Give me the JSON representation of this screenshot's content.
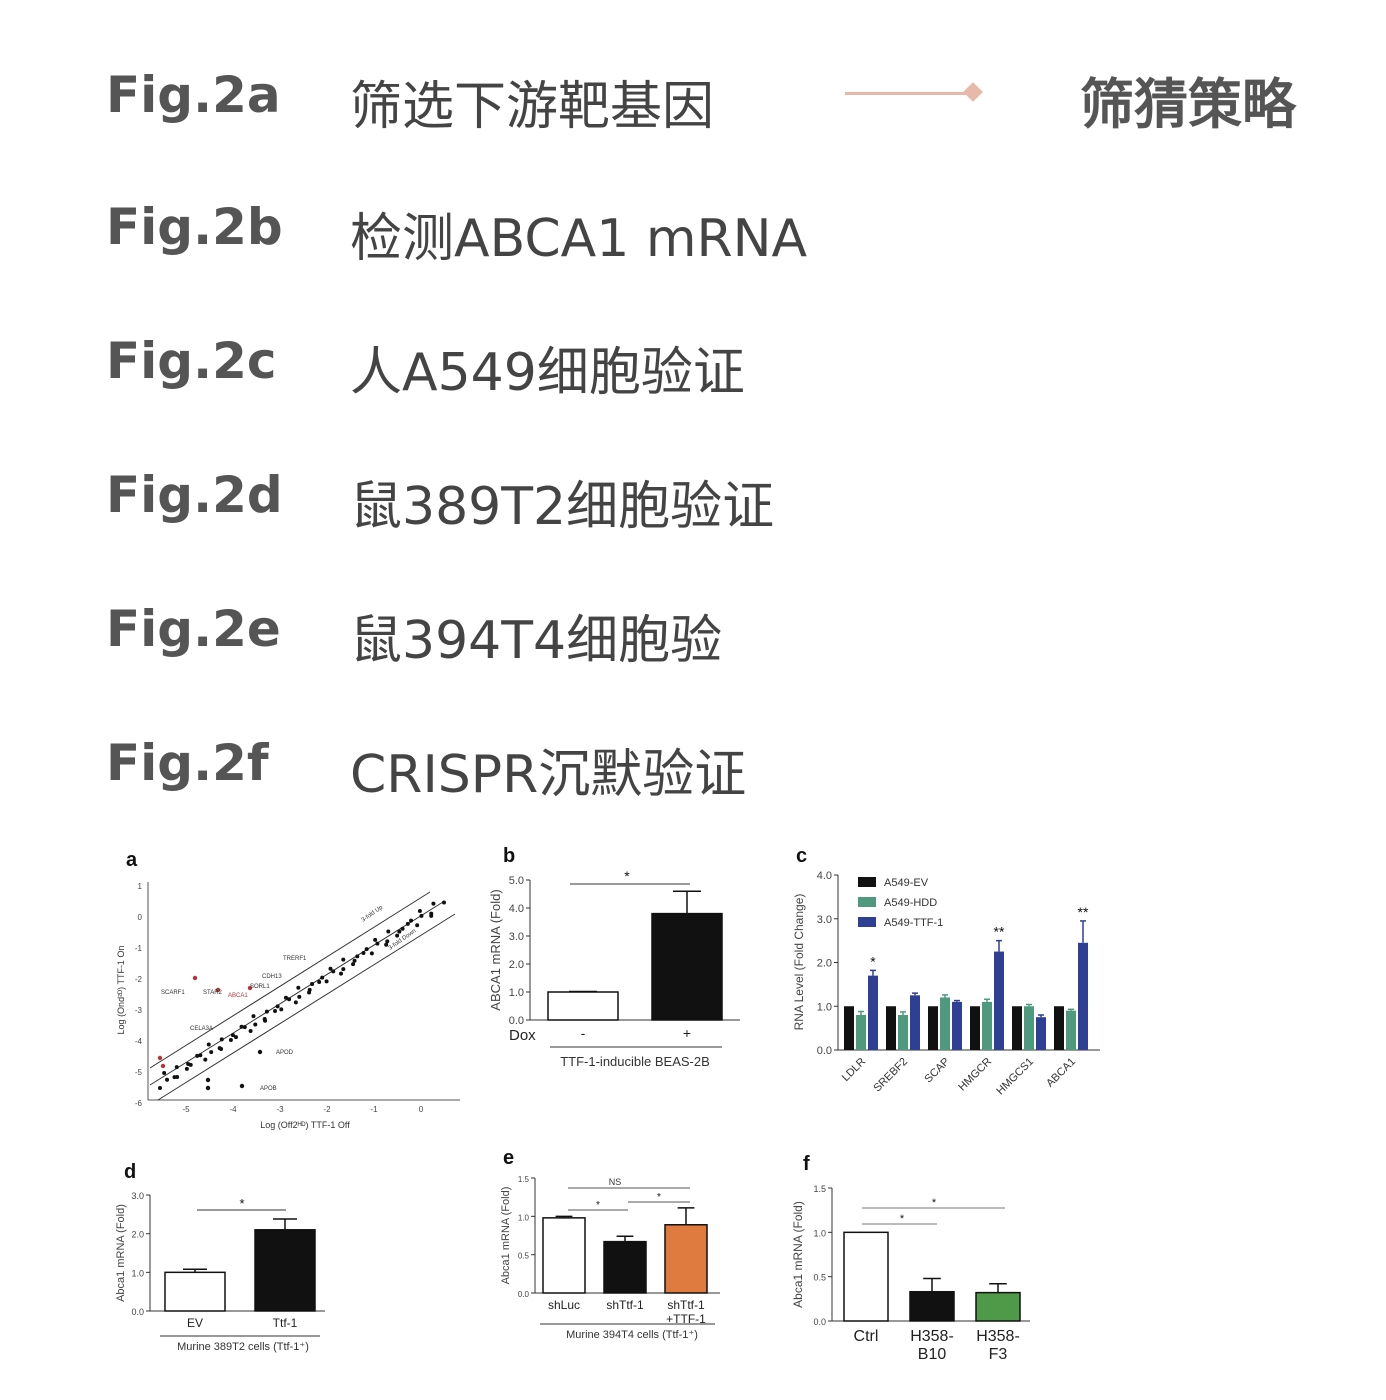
{
  "rows": [
    {
      "fig": "Fig.2a",
      "desc": "筛选下游靶基因"
    },
    {
      "fig": "Fig.2b",
      "desc": "检测ABCA1 mRNA"
    },
    {
      "fig": "Fig.2c",
      "desc": "人A549细胞验证"
    },
    {
      "fig": "Fig.2d",
      "desc": "鼠389T2细胞验证"
    },
    {
      "fig": "Fig.2e",
      "desc": "鼠394T4细胞验"
    },
    {
      "fig": "Fig.2f",
      "desc": "CRISPR沉默验证"
    }
  ],
  "strategy_label": "筛猜策略",
  "accent_color": "#e8b9a8",
  "chart_data": [
    {
      "panel": "a",
      "type": "scatter",
      "xlabel": "Log (Off2ᴴᴰ) TTF-1 Off",
      "ylabel": "Log (Ond²ᴰ) TTF-1 On",
      "xticks": [
        "-5",
        "-4",
        "-3",
        "-2",
        "-1",
        "0"
      ],
      "yticks": [
        "1",
        "0",
        "-1",
        "-2",
        "-3",
        "-4",
        "-5",
        "-6"
      ],
      "annotations": [
        "3-fold Up",
        "3-fold Down",
        "TRERF1",
        "CDH13",
        "SORL1",
        "ABCA1",
        "STAR2",
        "SCARF1",
        "CELA3A",
        "APOD",
        "APOB"
      ]
    },
    {
      "panel": "b",
      "type": "bar",
      "categories": [
        "-",
        "+"
      ],
      "values": [
        1.0,
        3.8
      ],
      "errors": [
        0.02,
        0.8
      ],
      "ylabel": "ABCA1 mRNA (Fold)",
      "ylim": [
        0,
        5
      ],
      "yticks": [
        "5.0",
        "4.0",
        "3.0",
        "2.0",
        "1.0",
        "0.0"
      ],
      "row_label": "Dox",
      "xlabel": "TTF-1-inducible BEAS-2B",
      "sig": "*"
    },
    {
      "panel": "c",
      "type": "bar",
      "categories": [
        "LDLR",
        "SREBF2",
        "SCAP",
        "HMGCR",
        "HMGCS1",
        "ABCA1"
      ],
      "series": [
        {
          "name": "A549-EV",
          "values": [
            1.0,
            1.0,
            1.0,
            1.0,
            1.0,
            1.0
          ],
          "errors": [
            0,
            0,
            0,
            0,
            0,
            0
          ]
        },
        {
          "name": "A549-HDD",
          "values": [
            0.8,
            0.8,
            1.2,
            1.1,
            1.0,
            0.9
          ],
          "errors": [
            0.08,
            0.07,
            0.06,
            0.06,
            0.04,
            0.03
          ]
        },
        {
          "name": "A549-TTF-1",
          "values": [
            1.7,
            1.25,
            1.1,
            2.25,
            0.75,
            2.45
          ],
          "errors": [
            0.12,
            0.05,
            0.03,
            0.25,
            0.05,
            0.5
          ]
        }
      ],
      "colors": [
        "#111111",
        "#4f9a7e",
        "#2f3f93"
      ],
      "ylabel": "RNA Level (Fold Change)",
      "ylim": [
        0,
        4
      ],
      "yticks": [
        "4.0",
        "3.0",
        "2.0",
        "1.0",
        "0.0"
      ],
      "sig": [
        "*",
        "",
        "",
        "**",
        "",
        "**"
      ]
    },
    {
      "panel": "d",
      "type": "bar",
      "categories": [
        "EV",
        "Ttf-1"
      ],
      "values": [
        1.0,
        2.1
      ],
      "errors": [
        0.08,
        0.28
      ],
      "ylabel": "Abca1 mRNA (Fold)",
      "ylim": [
        0,
        3
      ],
      "yticks": [
        "3.0",
        "2.0",
        "1.0",
        "0.0"
      ],
      "xlabel": "Murine 389T2 cells (Ttf-1⁺)",
      "sig": "*"
    },
    {
      "panel": "e",
      "type": "bar",
      "categories": [
        "shLuc",
        "shTtf-1",
        "shTtf-1\n+TTF-1"
      ],
      "values": [
        0.98,
        0.67,
        0.89
      ],
      "errors": [
        0.02,
        0.07,
        0.22
      ],
      "ylabel": "Abca1 mRNA (Fold)",
      "ylim": [
        0,
        1.5
      ],
      "yticks": [
        "1.5",
        "1.0",
        "0.5",
        "0.0"
      ],
      "xlabel": "Murine 394T4 cells (Ttf-1⁺)",
      "sig": [
        "*",
        "*",
        "NS"
      ]
    },
    {
      "panel": "f",
      "type": "bar",
      "categories": [
        "Ctrl",
        "H358-\nB10",
        "H358-\nF3"
      ],
      "values": [
        1.0,
        0.33,
        0.32
      ],
      "errors": [
        0,
        0.15,
        0.1
      ],
      "ylabel": "Abca1 mRNA (Fold)",
      "ylim": [
        0,
        1.5
      ],
      "yticks": [
        "1.5",
        "1.0",
        "0.5",
        "0.0"
      ],
      "sig": [
        "*",
        "*"
      ]
    }
  ]
}
